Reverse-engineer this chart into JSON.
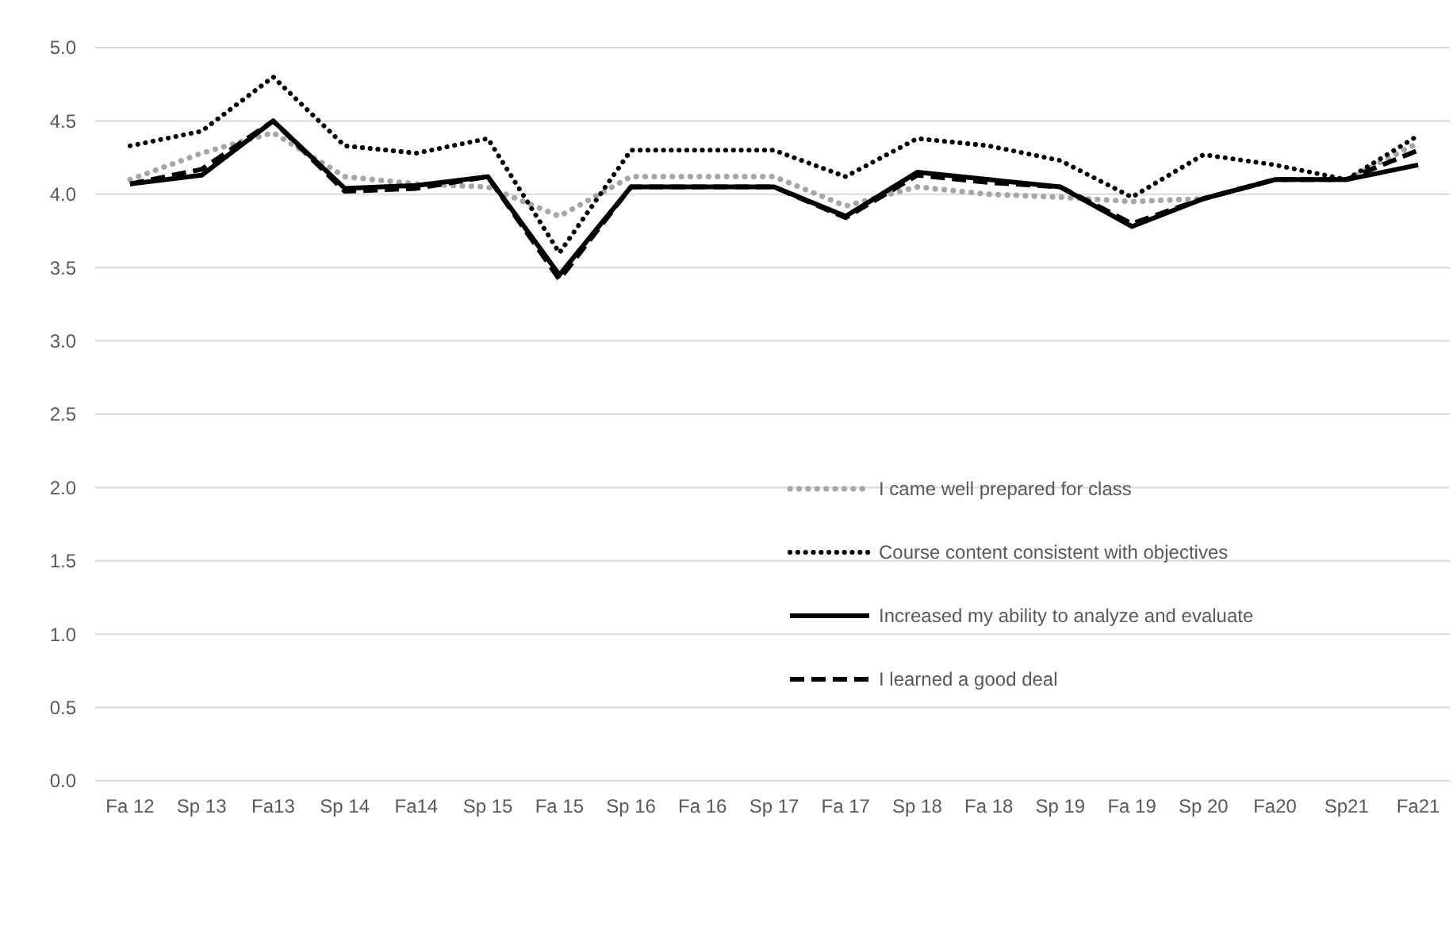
{
  "chart_data": {
    "type": "line",
    "categories": [
      "Fa 12",
      "Sp 13",
      "Fa13",
      "Sp 14",
      "Fa14",
      "Sp 15",
      "Fa 15",
      "Sp 16",
      "Fa 16",
      "Sp 17",
      "Fa 17",
      "Sp 18",
      "Fa 18",
      "Sp 19",
      "Fa 19",
      "Sp 20",
      "Fa20",
      "Sp21",
      "Fa21"
    ],
    "series": [
      {
        "name": "I came well prepared for class",
        "color": "#a6a6a6",
        "line_style": "dotted",
        "values": [
          4.1,
          4.28,
          4.42,
          4.12,
          4.07,
          4.05,
          3.85,
          4.12,
          4.12,
          4.12,
          3.92,
          4.05,
          4.0,
          3.98,
          3.95,
          3.97,
          4.1,
          4.1,
          4.35
        ]
      },
      {
        "name": "Course content consistent with objectives",
        "color": "#000000",
        "line_style": "dotted",
        "values": [
          4.33,
          4.43,
          4.8,
          4.33,
          4.28,
          4.38,
          3.6,
          4.3,
          4.3,
          4.3,
          4.12,
          4.38,
          4.33,
          4.23,
          3.98,
          4.27,
          4.2,
          4.1,
          4.4
        ]
      },
      {
        "name": "Increased my ability to analyze and evaluate",
        "color": "#000000",
        "line_style": "solid",
        "values": [
          4.07,
          4.13,
          4.5,
          4.04,
          4.06,
          4.12,
          3.45,
          4.05,
          4.05,
          4.05,
          3.85,
          4.15,
          4.1,
          4.05,
          3.78,
          3.97,
          4.1,
          4.1,
          4.2
        ]
      },
      {
        "name": "I learned a good deal",
        "color": "#000000",
        "line_style": "dashed",
        "values": [
          4.07,
          4.17,
          4.5,
          4.02,
          4.04,
          4.12,
          3.42,
          4.05,
          4.05,
          4.05,
          3.84,
          4.13,
          4.08,
          4.05,
          3.8,
          3.97,
          4.1,
          4.1,
          4.3
        ]
      }
    ],
    "ylim": [
      0,
      5
    ],
    "yticks": [
      {
        "value": 0,
        "label": "0.0"
      },
      {
        "value": 0.5,
        "label": "0.5"
      },
      {
        "value": 1,
        "label": "1.0"
      },
      {
        "value": 1.5,
        "label": "1.5"
      },
      {
        "value": 2,
        "label": "2.0"
      },
      {
        "value": 2.5,
        "label": "2.5"
      },
      {
        "value": 3,
        "label": "3.0"
      },
      {
        "value": 3.5,
        "label": "3.5"
      },
      {
        "value": 4,
        "label": "4.0"
      },
      {
        "value": 4.5,
        "label": "4.5"
      },
      {
        "value": 5,
        "label": "5.0"
      }
    ],
    "grid": "y",
    "legend": "bottom right",
    "marker": "none"
  }
}
